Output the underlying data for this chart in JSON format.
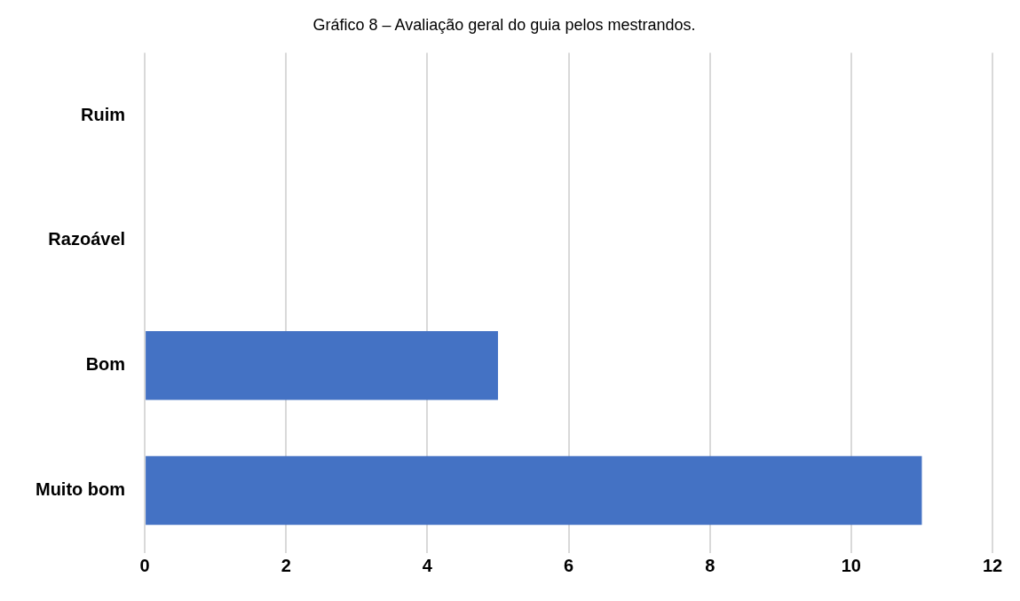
{
  "chart_data": {
    "type": "bar",
    "orientation": "horizontal",
    "title": "Gráfico 8 – Avaliação geral do guia pelos mestrandos.",
    "categories": [
      "Ruim",
      "Razoável",
      "Bom",
      "Muito bom"
    ],
    "values": [
      0,
      0,
      5,
      11
    ],
    "color": "#4472c4",
    "xlim": [
      0,
      12
    ],
    "xticks": [
      0,
      2,
      4,
      6,
      8,
      10,
      12
    ],
    "grid": "x",
    "legend": false
  }
}
